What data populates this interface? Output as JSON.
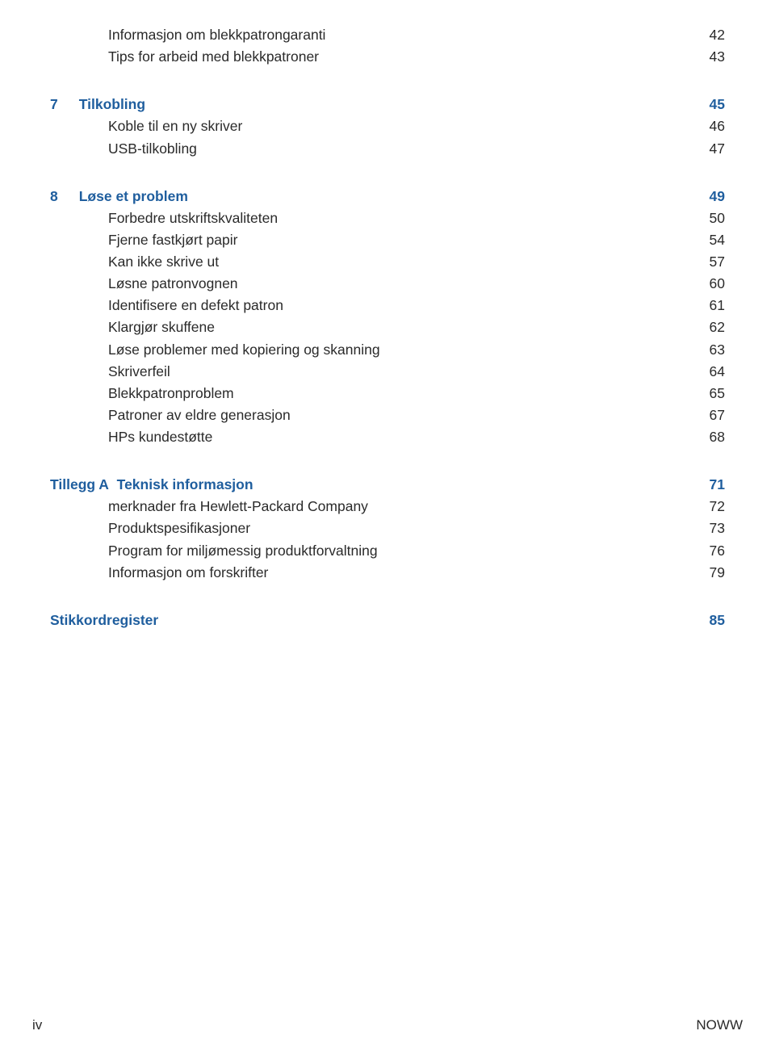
{
  "colors": {
    "link": "#1f5e9e",
    "text": "#2a2a2a",
    "background": "#ffffff"
  },
  "typography": {
    "body_fontsize_pt": 13,
    "heading_weight": "bold",
    "font_family": "Arial"
  },
  "toc": {
    "orphan_items": [
      {
        "label": "Informasjon om blekkpatrongaranti",
        "page": "42"
      },
      {
        "label": "Tips for arbeid med blekkpatroner",
        "page": "43"
      }
    ],
    "sections": [
      {
        "num": "7",
        "title": "Tilkobling",
        "page": "45",
        "items": [
          {
            "label": "Koble til en ny skriver",
            "page": "46"
          },
          {
            "label": "USB-tilkobling",
            "page": "47"
          }
        ]
      },
      {
        "num": "8",
        "title": "Løse et problem",
        "page": "49",
        "items": [
          {
            "label": "Forbedre utskriftskvaliteten",
            "page": "50"
          },
          {
            "label": "Fjerne fastkjørt papir",
            "page": "54"
          },
          {
            "label": "Kan ikke skrive ut",
            "page": "57"
          },
          {
            "label": "Løsne patronvognen",
            "page": "60"
          },
          {
            "label": "Identifisere en defekt patron",
            "page": "61"
          },
          {
            "label": "Klargjør skuffene",
            "page": "62"
          },
          {
            "label": "Løse problemer med kopiering og skanning",
            "page": "63"
          },
          {
            "label": "Skriverfeil",
            "page": "64"
          },
          {
            "label": "Blekkpatronproblem",
            "page": "65"
          },
          {
            "label": "Patroner av eldre generasjon",
            "page": "67"
          },
          {
            "label": "HPs kundestøtte",
            "page": "68"
          }
        ]
      },
      {
        "num": "Tillegg A",
        "title": "Teknisk informasjon",
        "page": "71",
        "nonum_style": true,
        "items": [
          {
            "label": "merknader fra Hewlett-Packard Company",
            "page": "72"
          },
          {
            "label": "Produktspesifikasjoner",
            "page": "73"
          },
          {
            "label": "Program for miljømessig produktforvaltning",
            "page": "76"
          },
          {
            "label": "Informasjon om forskrifter",
            "page": "79"
          }
        ]
      },
      {
        "num": "",
        "title": "Stikkordregister",
        "page": "85",
        "nonum_style": true,
        "items": []
      }
    ]
  },
  "footer": {
    "left": "iv",
    "right": "NOWW"
  }
}
